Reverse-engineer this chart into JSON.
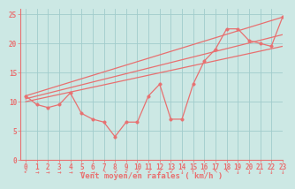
{
  "xlabel": "Vent moyen/en rafales ( km/h )",
  "xlim": [
    -0.5,
    23
  ],
  "ylim": [
    0,
    26
  ],
  "xticks": [
    0,
    1,
    2,
    3,
    4,
    5,
    6,
    7,
    8,
    9,
    10,
    11,
    12,
    13,
    14,
    15,
    16,
    17,
    18,
    19,
    20,
    21,
    22,
    23
  ],
  "yticks": [
    0,
    5,
    10,
    15,
    20,
    25
  ],
  "bg_color": "#cce8e4",
  "grid_color": "#a0cccc",
  "line_color": "#e87070",
  "zigzag_x": [
    0,
    1,
    2,
    3,
    4,
    5,
    6,
    7,
    8,
    9,
    10,
    11,
    12,
    13,
    14,
    15,
    16,
    17,
    18,
    19,
    20,
    21,
    22,
    23
  ],
  "zigzag_y": [
    11,
    9.5,
    9,
    9.5,
    11.5,
    8,
    7,
    6.5,
    4,
    6.5,
    6.5,
    11,
    13,
    7,
    7,
    13,
    17,
    19,
    22.5,
    22.5,
    20.5,
    20,
    19.5,
    24.5
  ],
  "trend1_x": [
    0,
    23
  ],
  "trend1_y": [
    11,
    24.5
  ],
  "trend2_x": [
    0,
    23
  ],
  "trend2_y": [
    10.5,
    21.5
  ],
  "trend3_x": [
    0,
    23
  ],
  "trend3_y": [
    10,
    19.5
  ],
  "marker_size": 2.5,
  "line_width": 0.9
}
